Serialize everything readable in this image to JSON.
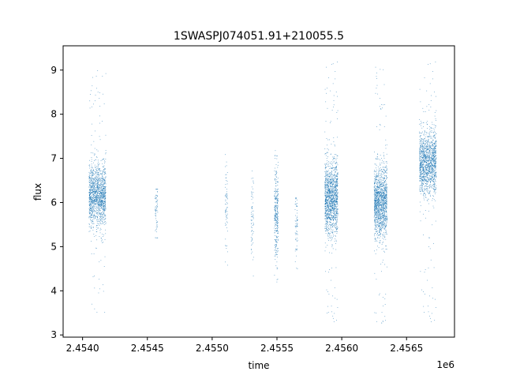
{
  "chart_data": {
    "type": "scatter",
    "title": "1SWASPJ074051.91+210055.5",
    "xlabel": "time",
    "ylabel": "flux",
    "x_offset_label": "1e6",
    "xlim": [
      2.45385,
      2.45687
    ],
    "ylim": [
      2.95,
      9.55
    ],
    "x_ticks": [
      2.454,
      2.4545,
      2.455,
      2.4555,
      2.456,
      2.4565
    ],
    "x_tick_labels": [
      "2.4540",
      "2.4545",
      "2.4550",
      "2.4555",
      "2.4560",
      "2.4565"
    ],
    "y_ticks": [
      3,
      4,
      5,
      6,
      7,
      8,
      9
    ],
    "y_tick_labels": [
      "3",
      "4",
      "5",
      "6",
      "7",
      "8",
      "9"
    ],
    "grid": false,
    "marker_color": "#1f77b4",
    "clusters": [
      {
        "x_min": 2.45405,
        "x_max": 2.45418,
        "y_center": 6.15,
        "y_spread": 0.35,
        "y_min": 3.5,
        "y_max": 9.0,
        "density": "high"
      },
      {
        "x_min": 2.45456,
        "x_max": 2.45458,
        "y_center": 5.8,
        "y_spread": 0.35,
        "y_min": 5.2,
        "y_max": 6.3,
        "density": "low"
      },
      {
        "x_min": 2.4551,
        "x_max": 2.45512,
        "y_center": 5.8,
        "y_spread": 0.45,
        "y_min": 4.4,
        "y_max": 7.1,
        "density": "low"
      },
      {
        "x_min": 2.4553,
        "x_max": 2.45532,
        "y_center": 5.6,
        "y_spread": 0.5,
        "y_min": 4.0,
        "y_max": 6.8,
        "density": "low"
      },
      {
        "x_min": 2.45548,
        "x_max": 2.45551,
        "y_center": 5.8,
        "y_spread": 0.5,
        "y_min": 4.2,
        "y_max": 7.2,
        "density": "medium"
      },
      {
        "x_min": 2.45564,
        "x_max": 2.45566,
        "y_center": 5.5,
        "y_spread": 0.4,
        "y_min": 4.5,
        "y_max": 6.1,
        "density": "low"
      },
      {
        "x_min": 2.45587,
        "x_max": 2.45597,
        "y_center": 6.1,
        "y_spread": 0.4,
        "y_min": 3.2,
        "y_max": 9.2,
        "density": "high"
      },
      {
        "x_min": 2.45625,
        "x_max": 2.45635,
        "y_center": 6.0,
        "y_spread": 0.4,
        "y_min": 3.2,
        "y_max": 9.2,
        "density": "high"
      },
      {
        "x_min": 2.4566,
        "x_max": 2.45673,
        "y_center": 6.9,
        "y_spread": 0.35,
        "y_min": 3.2,
        "y_max": 9.2,
        "density": "high"
      }
    ]
  }
}
